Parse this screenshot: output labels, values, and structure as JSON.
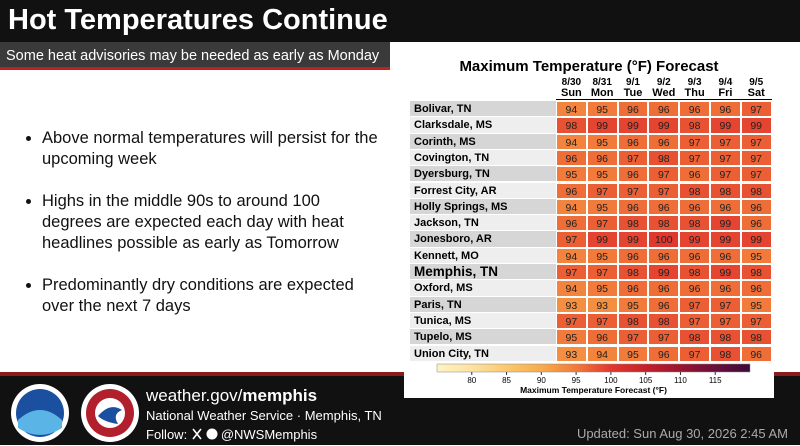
{
  "header": {
    "title": "Hot Temperatures Continue",
    "subtitle": "Some heat advisories may be needed as early as Monday"
  },
  "bullets": [
    "Above normal temperatures will persist for the upcoming week",
    "Highs in the middle 90s to around 100 degrees are expected each day with heat headlines possible as early as Tomorrow",
    "Predominantly dry conditions are expected over the next 7 days"
  ],
  "table": {
    "title": "Maximum Temperature (°F) Forecast",
    "columns": [
      {
        "date": "8/30",
        "day": "Sun"
      },
      {
        "date": "8/31",
        "day": "Mon"
      },
      {
        "date": "9/1",
        "day": "Tue"
      },
      {
        "date": "9/2",
        "day": "Wed"
      },
      {
        "date": "9/3",
        "day": "Thu"
      },
      {
        "date": "9/4",
        "day": "Fri"
      },
      {
        "date": "9/5",
        "day": "Sat"
      }
    ],
    "rows": [
      {
        "name": "Bolivar, TN",
        "values": [
          94,
          95,
          96,
          96,
          96,
          96,
          97
        ]
      },
      {
        "name": "Clarksdale, MS",
        "values": [
          98,
          99,
          99,
          99,
          98,
          99,
          99
        ]
      },
      {
        "name": "Corinth, MS",
        "values": [
          94,
          95,
          96,
          96,
          97,
          97,
          97
        ]
      },
      {
        "name": "Covington, TN",
        "values": [
          96,
          96,
          97,
          98,
          97,
          97,
          97
        ]
      },
      {
        "name": "Dyersburg, TN",
        "values": [
          95,
          95,
          96,
          97,
          96,
          97,
          97
        ]
      },
      {
        "name": "Forrest City, AR",
        "values": [
          96,
          97,
          97,
          97,
          98,
          98,
          98
        ]
      },
      {
        "name": "Holly Springs, MS",
        "values": [
          94,
          95,
          96,
          96,
          96,
          96,
          96
        ]
      },
      {
        "name": "Jackson, TN",
        "values": [
          96,
          97,
          98,
          98,
          98,
          99,
          96
        ]
      },
      {
        "name": "Jonesboro, AR",
        "values": [
          97,
          99,
          99,
          100,
          99,
          99,
          99
        ]
      },
      {
        "name": "Kennett, MO",
        "values": [
          94,
          95,
          96,
          96,
          96,
          96,
          95
        ]
      },
      {
        "name": "Memphis, TN",
        "values": [
          97,
          97,
          98,
          99,
          98,
          99,
          98
        ],
        "bold": true
      },
      {
        "name": "Oxford, MS",
        "values": [
          94,
          95,
          96,
          96,
          96,
          96,
          96
        ]
      },
      {
        "name": "Paris, TN",
        "values": [
          93,
          93,
          95,
          96,
          97,
          97,
          95
        ]
      },
      {
        "name": "Tunica, MS",
        "values": [
          97,
          97,
          98,
          98,
          97,
          97,
          97
        ]
      },
      {
        "name": "Tupelo, MS",
        "values": [
          95,
          96,
          97,
          97,
          98,
          98,
          98
        ]
      },
      {
        "name": "Union City, TN",
        "values": [
          93,
          94,
          95,
          96,
          97,
          98,
          96
        ]
      }
    ]
  },
  "colorbar": {
    "title": "Maximum Temperature Forecast (°F)",
    "xlim": [
      75,
      120
    ],
    "ticks": [
      80,
      85,
      90,
      95,
      100,
      105,
      110,
      115
    ],
    "colors": [
      "#fff3c4",
      "#fde2a0",
      "#fbc870",
      "#f8ab4a",
      "#f27a3a",
      "#e2372d",
      "#c4212a",
      "#9a1530",
      "#6a0e3a",
      "#3d0a3a"
    ]
  },
  "footer": {
    "site": "weather.gov/",
    "site_bold": "memphis",
    "office": "National Weather Service · Memphis, TN",
    "follow": "Follow:",
    "handle": "@NWSMemphis",
    "updated": "Updated: Sun Aug 30, 2026 2:45 AM"
  }
}
